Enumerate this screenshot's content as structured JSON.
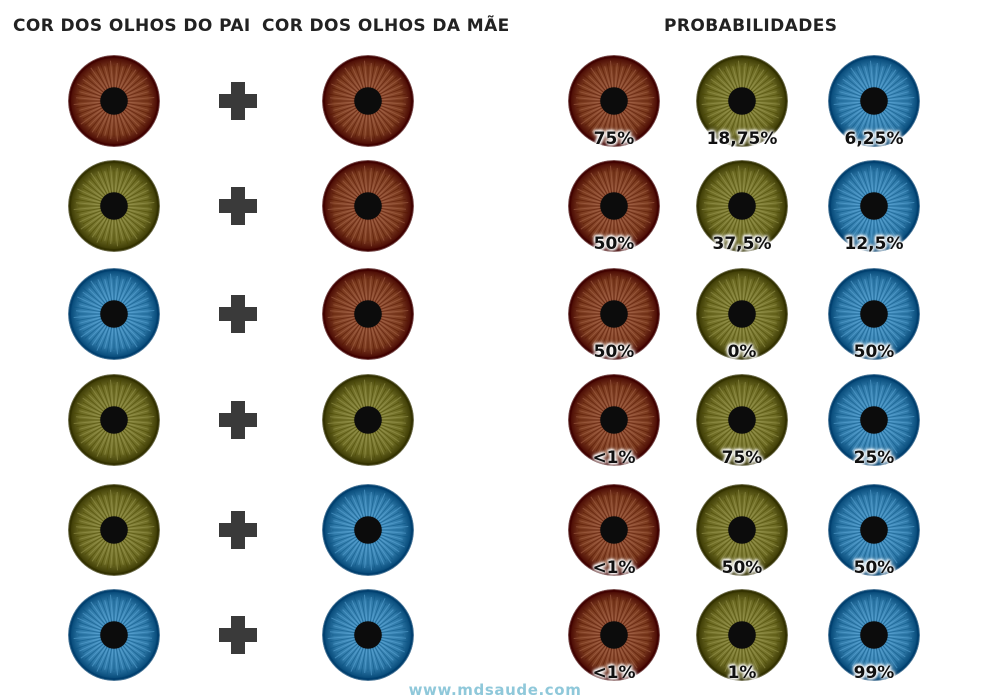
{
  "headers": {
    "father": "COR DOS OLHOS DO PAI",
    "mother": "COR DOS OLHOS DA MÃE",
    "probabilities": "PROBABILIDADES"
  },
  "colors": {
    "brown": "#7a3a1e",
    "green": "#6d6b24",
    "blue": "#2f79a8"
  },
  "plus_icon": "plus-icon",
  "rows": [
    {
      "father": "brown",
      "mother": "brown",
      "probabilities": [
        "75%",
        "18,75%",
        "6,25%"
      ]
    },
    {
      "father": "green",
      "mother": "brown",
      "probabilities": [
        "50%",
        "37,5%",
        "12,5%"
      ]
    },
    {
      "father": "blue",
      "mother": "brown",
      "probabilities": [
        "50%",
        "0%",
        "50%"
      ]
    },
    {
      "father": "green",
      "mother": "green",
      "probabilities": [
        "<1%",
        "75%",
        "25%"
      ]
    },
    {
      "father": "green",
      "mother": "blue",
      "probabilities": [
        "<1%",
        "50%",
        "50%"
      ]
    },
    {
      "father": "blue",
      "mother": "blue",
      "probabilities": [
        "<1%",
        "1%",
        "99%"
      ]
    }
  ],
  "probability_colors": [
    "brown",
    "green",
    "blue"
  ],
  "footer": "www.mdsaude.com"
}
